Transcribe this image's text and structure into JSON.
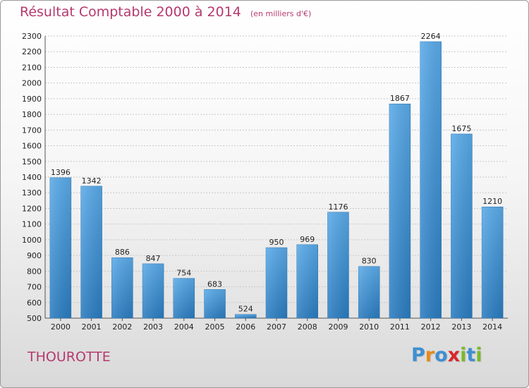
{
  "chart_data": {
    "type": "bar",
    "title": "Résultat Comptable 2000 à 2014",
    "subtitle": "(en milliers d'€)",
    "categories": [
      "2000",
      "2001",
      "2002",
      "2003",
      "2004",
      "2005",
      "2006",
      "2007",
      "2008",
      "2009",
      "2010",
      "2011",
      "2012",
      "2013",
      "2014"
    ],
    "values": [
      1396,
      1342,
      886,
      847,
      754,
      683,
      524,
      950,
      969,
      1176,
      830,
      1867,
      2264,
      1675,
      1210
    ],
    "ylim": [
      500,
      2300
    ],
    "yticks": [
      500,
      600,
      700,
      800,
      900,
      1000,
      1100,
      1200,
      1300,
      1400,
      1500,
      1600,
      1700,
      1800,
      1900,
      2000,
      2100,
      2200,
      2300
    ],
    "grid": true,
    "bar_color": "#3a92d6"
  },
  "commune": "THOUROTTE",
  "logo": {
    "letters": [
      "P",
      "r",
      "o",
      "x",
      "i",
      "t",
      "i"
    ],
    "colors": [
      "#3f8fd2",
      "#e8891c",
      "#3f8fd2",
      "#d8262b",
      "#7ab929",
      "#3f8fd2",
      "#7ab929"
    ]
  }
}
